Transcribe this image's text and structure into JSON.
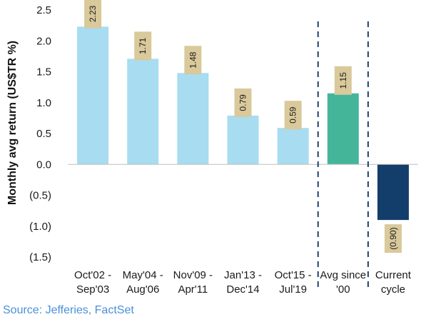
{
  "chart_data": {
    "type": "bar",
    "title": "",
    "ylabel": "Monthly avg return (US$TR %)",
    "xlabel": "",
    "ylim": [
      -1.5,
      2.5
    ],
    "yticks": [
      2.5,
      2.0,
      1.5,
      1.0,
      0.5,
      0.0,
      -0.5,
      -1.0,
      -1.5
    ],
    "ytick_labels": [
      "2.5",
      "2.0",
      "1.5",
      "1.0",
      "0.5",
      "0.0",
      "(0.5)",
      "(1.0)",
      "(1.5)"
    ],
    "categories": [
      [
        "Oct'02 -",
        "Sep'03"
      ],
      [
        "May'04 -",
        "Aug'06"
      ],
      [
        "Nov'09 -",
        "Apr'11"
      ],
      [
        "Jan'13 -",
        "Dec'14"
      ],
      [
        "Oct'15 -",
        "Jul'19"
      ],
      [
        "Avg since",
        "'00"
      ],
      [
        "Current",
        "cycle"
      ]
    ],
    "values": [
      2.23,
      1.71,
      1.48,
      0.79,
      0.59,
      1.15,
      -0.9
    ],
    "value_labels": [
      "2.23",
      "1.71",
      "1.48",
      "0.79",
      "0.59",
      "1.15",
      "(0.90)"
    ],
    "bar_colors": [
      "#a8dcf0",
      "#a8dcf0",
      "#a8dcf0",
      "#a8dcf0",
      "#a8dcf0",
      "#45b59a",
      "#133d6b"
    ],
    "label_box_color": "#d9c99b",
    "separators": "dashed vertical lines before 'Avg since '00' and before 'Current cycle'",
    "separator_color": "#1f3f6e",
    "grid": false,
    "legend": "none"
  },
  "source": "Source: Jefferies, FactSet"
}
